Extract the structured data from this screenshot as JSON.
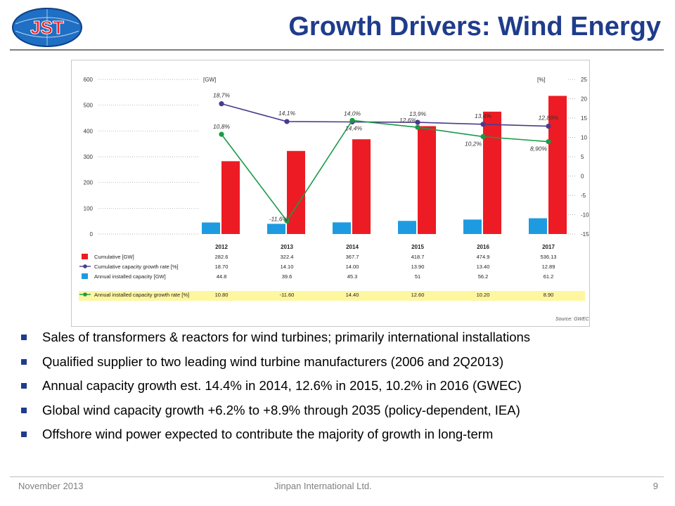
{
  "header": {
    "logo_text": "JST",
    "title": "Growth Drivers: Wind Energy"
  },
  "chart_data": {
    "type": "bar",
    "categories": [
      "2012",
      "2013",
      "2014",
      "2015",
      "2016",
      "2017"
    ],
    "left_axis_label": "[GW]",
    "right_axis_label": "[%]",
    "ylim_left": [
      0,
      600
    ],
    "ylim_right": [
      -15,
      25
    ],
    "left_ticks": [
      "600",
      "500",
      "400",
      "300",
      "200",
      "100",
      "0"
    ],
    "right_ticks": [
      "25",
      "20",
      "15",
      "10",
      "5",
      "0",
      "-5",
      "-10",
      "-15"
    ],
    "series": [
      {
        "name": "Cumulative [GW]",
        "kind": "bar",
        "axis": "left",
        "color": "#ed1c24",
        "values": [
          282.6,
          322.4,
          367.7,
          418.7,
          474.9,
          536.13
        ],
        "table_values": [
          "282.6",
          "322.4",
          "367.7",
          "418.7",
          "474.9",
          "536.13"
        ]
      },
      {
        "name": "Cumulative capacity growth rate [%]",
        "kind": "line",
        "axis": "right",
        "color": "#4b3a8c",
        "values": [
          18.7,
          14.1,
          14.0,
          13.9,
          13.4,
          12.89
        ],
        "point_labels": [
          "18,7%",
          "14,1%",
          "14,0%",
          "13,9%",
          "13,4%",
          "12,89%"
        ],
        "table_values": [
          "18.70",
          "14.10",
          "14.00",
          "13.90",
          "13.40",
          "12.89"
        ]
      },
      {
        "name": "Annual installed capacity [GW]",
        "kind": "bar",
        "axis": "left",
        "color": "#1e9be0",
        "values": [
          44.8,
          39.6,
          45.3,
          51,
          56.2,
          61.2
        ],
        "table_values": [
          "44.8",
          "39.6",
          "45.3",
          "51",
          "56.2",
          "61.2"
        ]
      },
      {
        "name": "Annual installed capacity growth rate [%]",
        "kind": "line",
        "axis": "right",
        "color": "#1a9a47",
        "values": [
          10.8,
          -11.6,
          14.4,
          12.6,
          10.2,
          8.9
        ],
        "point_labels": [
          "10,8%",
          "-11,6%",
          "14,4%",
          "12,6%",
          "10,2%",
          "8,90%"
        ],
        "table_values": [
          "10.80",
          "-11.60",
          "14.40",
          "12.60",
          "10.20",
          "8.90"
        ]
      }
    ],
    "highlight_row_color": "#fff6a0",
    "source": "Source: GWEC"
  },
  "bullets": [
    "Sales of transformers & reactors for wind turbines; primarily international installations",
    "Qualified supplier to two leading wind turbine manufacturers (2006 and 2Q2013)",
    "Annual capacity growth est. 14.4% in 2014, 12.6% in 2015, 10.2% in 2016 (GWEC)",
    "Global wind capacity growth +6.2% to +8.9% through 2035 (policy-dependent, IEA)",
    "Offshore wind power expected to contribute the majority of growth in long-term"
  ],
  "footer": {
    "date": "November 2013",
    "company": "Jinpan International Ltd.",
    "page": "9"
  }
}
